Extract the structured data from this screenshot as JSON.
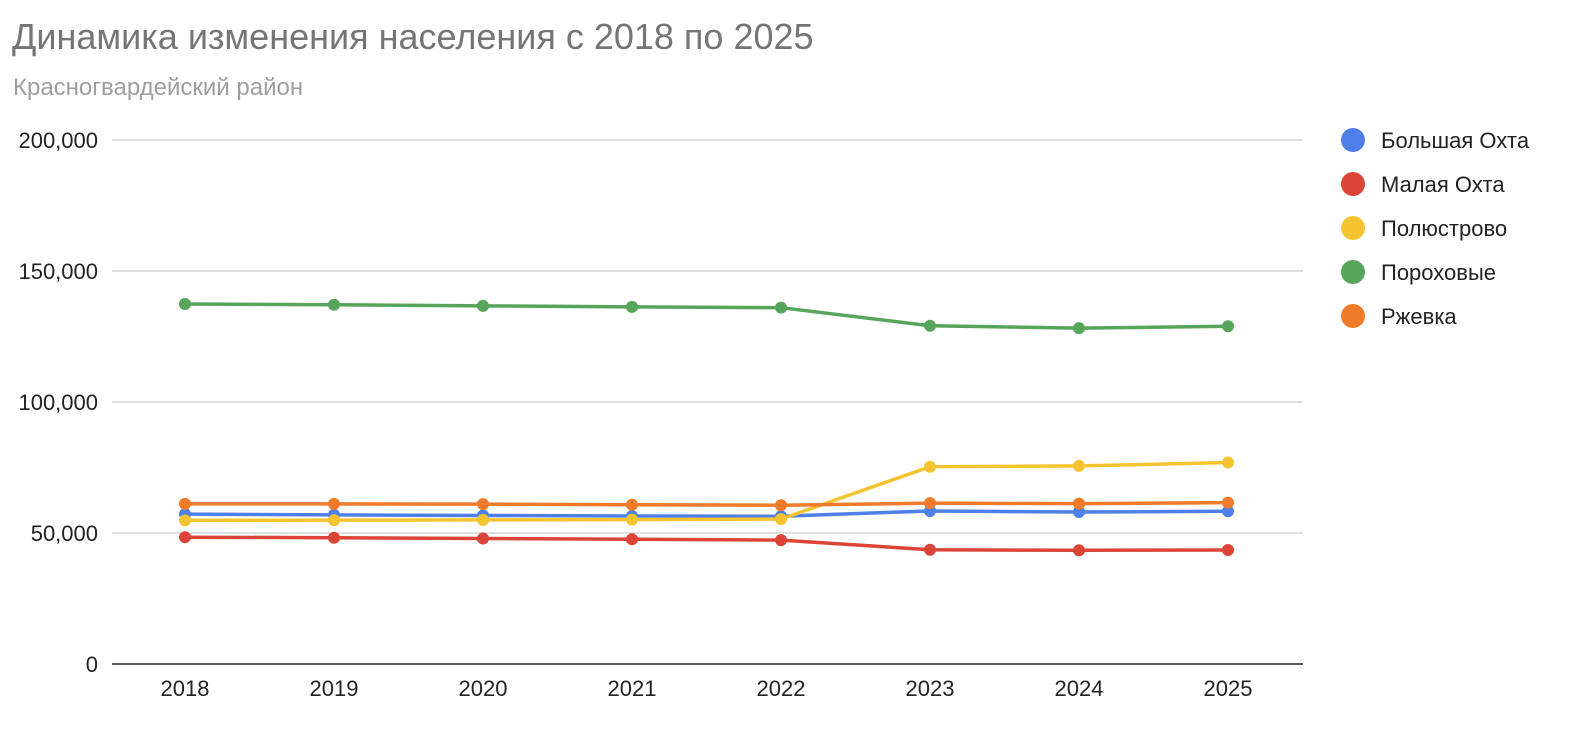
{
  "chart_data": {
    "type": "line",
    "title": "Динамика изменения населения с 2018 по 2025",
    "subtitle": "Красногвардейский район",
    "xlabel": "",
    "ylabel": "",
    "categories": [
      "2018",
      "2019",
      "2020",
      "2021",
      "2022",
      "2023",
      "2024",
      "2025"
    ],
    "ylim": [
      0,
      200000
    ],
    "yticks": [
      0,
      50000,
      100000,
      150000,
      200000
    ],
    "ytick_labels": [
      "0",
      "50,000",
      "100,000",
      "150,000",
      "200,000"
    ],
    "grid": true,
    "legend_position": "right",
    "series": [
      {
        "name": "Большая Охта",
        "color": "#4f7fe8",
        "values": [
          57200,
          56900,
          56700,
          56500,
          56400,
          58400,
          58000,
          58300
        ]
      },
      {
        "name": "Малая Охта",
        "color": "#db4437",
        "values": [
          48400,
          48200,
          47900,
          47600,
          47300,
          43600,
          43400,
          43500
        ]
      },
      {
        "name": "Полюстрово",
        "color": "#f4c430",
        "values": [
          54800,
          54900,
          55000,
          55100,
          55300,
          75300,
          75600,
          76900
        ]
      },
      {
        "name": "Пороховые",
        "color": "#57a55a",
        "values": [
          137400,
          137100,
          136700,
          136300,
          136000,
          129100,
          128200,
          128900
        ]
      },
      {
        "name": "Ржевка",
        "color": "#ef7b2b",
        "values": [
          61100,
          61100,
          61000,
          60800,
          60600,
          61400,
          61200,
          61600
        ]
      }
    ]
  }
}
